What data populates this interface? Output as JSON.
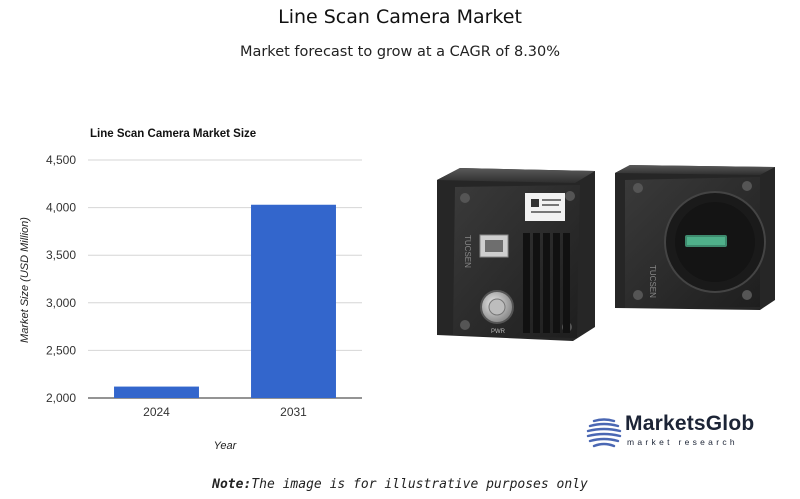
{
  "header": {
    "title": "Line Scan Camera Market",
    "subtitle": "Market forecast to grow at a CAGR of 8.30%"
  },
  "chart_data": {
    "type": "bar",
    "title": "Line Scan Camera Market Size",
    "xlabel": "Year",
    "ylabel": "Market Size (USD Million)",
    "categories": [
      "2024",
      "2031"
    ],
    "values": [
      2120,
      4030
    ],
    "ylim": [
      2000,
      4500
    ],
    "yticks": [
      2000,
      2500,
      3000,
      3500,
      4000,
      4500
    ],
    "ytick_labels": [
      "2,000",
      "2,500",
      "3,000",
      "3,500",
      "4,000",
      "4,500"
    ],
    "bar_color": "#3366cc",
    "grid": true
  },
  "camera_labels": {
    "brand_back": "TUCSEN",
    "brand_side": "TUCSEN",
    "port_label": "PWR"
  },
  "logo": {
    "name": "MarketsGlob",
    "tagline": "market research",
    "color": "#1c2436"
  },
  "footer": {
    "note_label": "Note:",
    "note_text": "The image is for illustrative purposes only"
  }
}
